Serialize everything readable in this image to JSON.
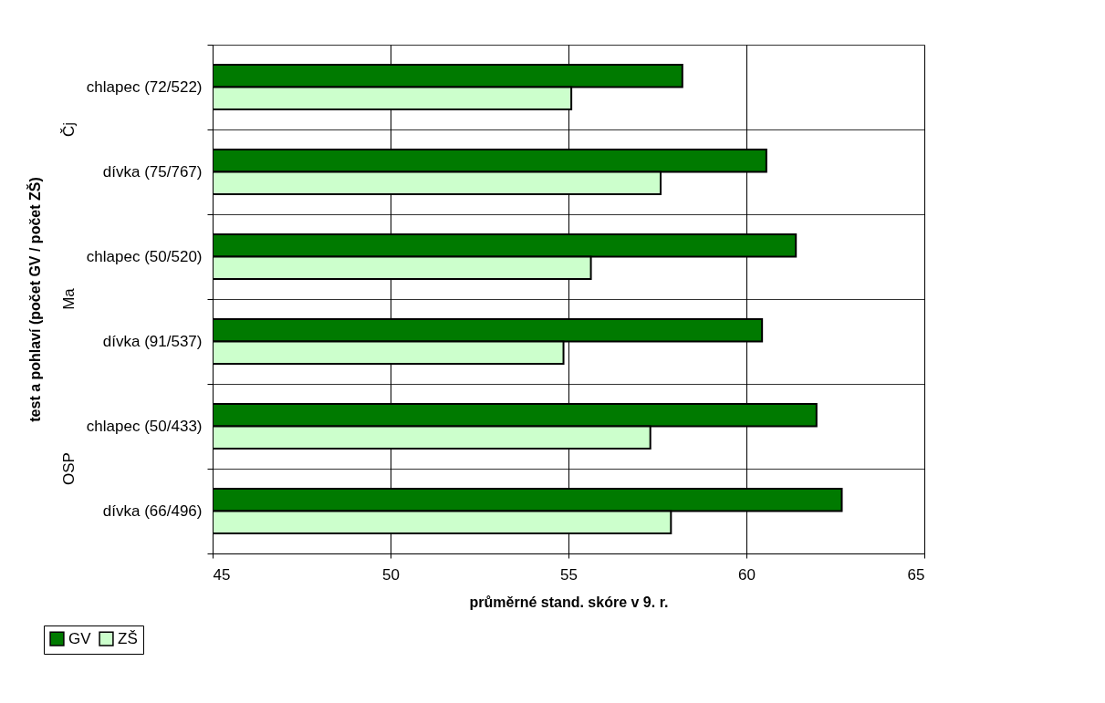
{
  "chart_data": {
    "type": "bar",
    "orientation": "horizontal",
    "categories": [
      "chlapec (72/522)",
      "dívka (75/767)",
      "chlapec (50/520)",
      "dívka (91/537)",
      "chlapec (50/433)",
      "dívka (66/496)"
    ],
    "series": [
      {
        "name": "GV",
        "color": "#007a00",
        "values": [
          58.2,
          60.56,
          61.39,
          60.44,
          61.97,
          62.68
        ]
      },
      {
        "name": "ZŠ",
        "color": "#ccffcc",
        "values": [
          55.08,
          57.59,
          55.63,
          54.86,
          57.3,
          57.88
        ]
      }
    ],
    "xlim": [
      45,
      65
    ],
    "xticks": [
      45,
      50,
      55,
      60,
      65
    ],
    "xlabel": "průměrné stand. skóre v 9. r.",
    "ylabel": "test a pohlaví (počet GV / počet ZŠ)",
    "annotations": [
      "Čj",
      "Ma",
      "OSP"
    ],
    "grid": true,
    "legend": "bottom"
  }
}
